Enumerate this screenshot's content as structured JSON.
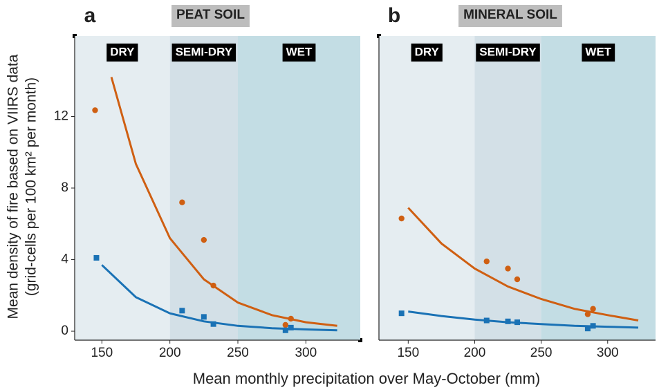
{
  "y_label": [
    "Mean density of fire based on VIIRS data",
    "(grid-cells per 100 km² per month)"
  ],
  "x_label": "Mean monthly precipitation over May-October (mm)",
  "chart_data": [
    {
      "type": "scatter",
      "panel": "a",
      "title": "PEAT SOIL",
      "xlim": [
        130,
        340
      ],
      "ylim": [
        -0.5,
        16.5
      ],
      "xticks": [
        150,
        200,
        250,
        300
      ],
      "yticks": [
        0,
        4,
        8,
        12
      ],
      "zones": [
        {
          "label": "DRY",
          "from": 130,
          "to": 200,
          "color": "#e5edf1"
        },
        {
          "label": "SEMI-DRY",
          "from": 200,
          "to": 250,
          "color": "#d3e0e7"
        },
        {
          "label": "WET",
          "from": 250,
          "to": 340,
          "color": "#c3dde4"
        }
      ],
      "series": [
        {
          "type": "scatter",
          "marker": "circle",
          "color": "#cf5f12",
          "x": [
            145,
            209,
            225,
            232,
            285,
            289
          ],
          "values": [
            12.35,
            7.2,
            5.1,
            2.55,
            0.35,
            0.7
          ]
        },
        {
          "type": "scatter",
          "marker": "square",
          "color": "#1a72b5",
          "x": [
            146,
            209,
            225,
            232,
            285,
            289
          ],
          "values": [
            4.1,
            1.15,
            0.8,
            0.4,
            0.05,
            0.2
          ]
        },
        {
          "type": "line",
          "color": "#cf5f12",
          "x": [
            157,
            175,
            200,
            225,
            250,
            275,
            300,
            323
          ],
          "values": [
            14.2,
            9.35,
            5.2,
            2.9,
            1.6,
            0.9,
            0.5,
            0.3
          ]
        },
        {
          "type": "line",
          "color": "#1a72b5",
          "x": [
            150,
            175,
            200,
            225,
            250,
            275,
            300,
            323
          ],
          "values": [
            3.7,
            1.9,
            1.0,
            0.55,
            0.3,
            0.17,
            0.1,
            0.05
          ]
        }
      ]
    },
    {
      "type": "scatter",
      "panel": "b",
      "title": "MINERAL SOIL",
      "xlim": [
        128,
        336
      ],
      "ylim": [
        -0.5,
        16.5
      ],
      "xticks": [
        150,
        200,
        250,
        300
      ],
      "zones": [
        {
          "label": "DRY",
          "from": 128,
          "to": 200,
          "color": "#e5edf1"
        },
        {
          "label": "SEMI-DRY",
          "from": 200,
          "to": 250,
          "color": "#d3e0e7"
        },
        {
          "label": "WET",
          "from": 250,
          "to": 336,
          "color": "#c3dde4"
        }
      ],
      "series": [
        {
          "type": "scatter",
          "marker": "circle",
          "color": "#cf5f12",
          "x": [
            145,
            209,
            225,
            232,
            285,
            289
          ],
          "values": [
            6.3,
            3.9,
            3.5,
            2.9,
            0.95,
            1.25
          ]
        },
        {
          "type": "scatter",
          "marker": "square",
          "color": "#1a72b5",
          "x": [
            145,
            209,
            225,
            232,
            285,
            289
          ],
          "values": [
            1.0,
            0.6,
            0.55,
            0.5,
            0.15,
            0.3
          ]
        },
        {
          "type": "line",
          "color": "#cf5f12",
          "x": [
            150,
            175,
            200,
            225,
            250,
            275,
            300,
            323
          ],
          "values": [
            6.9,
            4.9,
            3.5,
            2.5,
            1.8,
            1.25,
            0.9,
            0.6
          ]
        },
        {
          "type": "line",
          "color": "#1a72b5",
          "x": [
            150,
            175,
            200,
            225,
            250,
            275,
            300,
            323
          ],
          "values": [
            1.1,
            0.85,
            0.65,
            0.5,
            0.4,
            0.3,
            0.25,
            0.2
          ]
        }
      ]
    }
  ]
}
